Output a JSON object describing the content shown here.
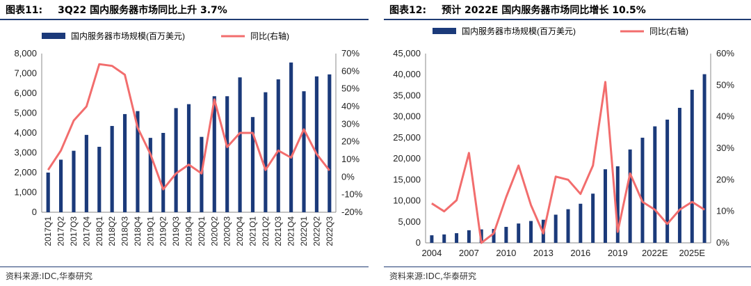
{
  "charts": [
    {
      "title_prefix": "图表11:",
      "title_text": "3Q22 国内服务器市场同比上升 3.7%",
      "source": "资料来源:IDC,华泰研究"
    },
    {
      "title_prefix": "图表12:",
      "title_text": "预计 2022E 国内服务器市场同比增长 10.5%",
      "source": "资料来源:IDC,华泰研究"
    }
  ],
  "colors": {
    "bar": "#1b3a7a",
    "line": "#f26d6d",
    "rule": "#1f3b73",
    "axis": "#888888"
  },
  "chart_data": [
    {
      "type": "bar+line",
      "categories": [
        "2017Q1",
        "2017Q2",
        "2017Q3",
        "2017Q4",
        "2018Q1",
        "2018Q2",
        "2018Q3",
        "2018Q4",
        "2019Q1",
        "2019Q2",
        "2019Q3",
        "2019Q4",
        "2020Q1",
        "2020Q2",
        "2020Q3",
        "2020Q4",
        "2021Q1",
        "2021Q2",
        "2021Q3",
        "2021Q4",
        "2022Q1",
        "2022Q2",
        "2022Q3"
      ],
      "series": [
        {
          "name": "国内服务器市场规模(百万美元)",
          "axis": "left",
          "kind": "bar",
          "values": [
            2000,
            2650,
            3100,
            3900,
            3300,
            4350,
            4950,
            5100,
            3750,
            4000,
            5250,
            5450,
            3800,
            5850,
            5850,
            6800,
            4800,
            6050,
            6700,
            7550,
            6100,
            6850,
            6950
          ]
        },
        {
          "name": "同比(右轴)",
          "axis": "right",
          "kind": "line",
          "values": [
            4,
            15,
            32,
            40,
            64,
            63,
            58,
            28,
            13,
            -7,
            2,
            7,
            2,
            44,
            17,
            25,
            25,
            4,
            15,
            11,
            27,
            13,
            3.7
          ]
        }
      ],
      "left_axis": {
        "min": 0,
        "max": 8000,
        "ticks": [
          "0",
          "1,000",
          "2,000",
          "3,000",
          "4,000",
          "5,000",
          "6,000",
          "7,000",
          "8,000"
        ]
      },
      "right_axis": {
        "min": -20,
        "max": 70,
        "ticks": [
          "-20%",
          "-10%",
          "0%",
          "10%",
          "20%",
          "30%",
          "40%",
          "50%",
          "60%",
          "70%"
        ]
      },
      "x_labels": [
        "2017Q1",
        "2017Q2",
        "2017Q3",
        "2017Q4",
        "2018Q1",
        "2018Q2",
        "2018Q3",
        "2018Q4",
        "2019Q1",
        "2019Q2",
        "2019Q3",
        "2019Q4",
        "2020Q1",
        "2020Q2",
        "2020Q3",
        "2020Q4",
        "2021Q1",
        "2021Q2",
        "2021Q3",
        "2021Q4",
        "2022Q1",
        "2022Q2",
        "2022Q3"
      ],
      "legend": [
        "国内服务器市场规模(百万美元)",
        "同比(右轴)"
      ]
    },
    {
      "type": "bar+line",
      "categories": [
        "2004",
        "2005",
        "2006",
        "2007",
        "2008",
        "2009",
        "2010",
        "2011",
        "2012",
        "2013",
        "2014",
        "2015",
        "2016",
        "2017",
        "2018",
        "2019",
        "2020",
        "2021",
        "2022E",
        "2023E",
        "2024E",
        "2025E",
        "2026E"
      ],
      "series": [
        {
          "name": "国内服务器市场规模(百万美元)",
          "axis": "left",
          "kind": "bar",
          "values": [
            1800,
            2000,
            2300,
            3000,
            3200,
            3300,
            3800,
            4600,
            5200,
            5500,
            6700,
            8000,
            9300,
            11700,
            17500,
            18200,
            22200,
            25000,
            27700,
            29300,
            32100,
            36400,
            40100
          ]
        },
        {
          "name": "同比(右轴)",
          "axis": "right",
          "kind": "line",
          "values": [
            12.5,
            10,
            13.5,
            28.5,
            0,
            3,
            14.5,
            24.5,
            12,
            3,
            21,
            20,
            15.5,
            24.5,
            51,
            3.5,
            22,
            13,
            10.5,
            6,
            10.5,
            13,
            10.5
          ]
        }
      ],
      "left_axis": {
        "min": 0,
        "max": 45000,
        "ticks": [
          "0",
          "5,000",
          "10,000",
          "15,000",
          "20,000",
          "25,000",
          "30,000",
          "35,000",
          "40,000",
          "45,000"
        ]
      },
      "right_axis": {
        "min": 0,
        "max": 60,
        "ticks": [
          "0%",
          "10%",
          "20%",
          "30%",
          "40%",
          "50%",
          "60%"
        ]
      },
      "x_labels": [
        "2004",
        "2007",
        "2010",
        "2013",
        "2016",
        "2019",
        "2022E",
        "2025E"
      ],
      "x_label_every": 3,
      "legend": [
        "国内服务器市场规模(百万美元)",
        "同比(右轴)"
      ]
    }
  ]
}
